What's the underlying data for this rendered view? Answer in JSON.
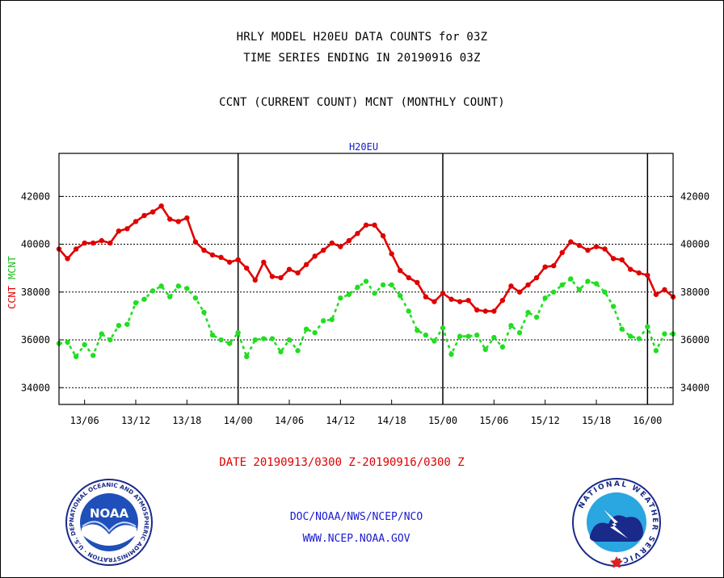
{
  "header": {
    "line1": "HRLY MODEL H20EU DATA COUNTS for 03Z",
    "line2": "TIME SERIES ENDING IN 20190916 03Z",
    "line3": "CCNT (CURRENT COUNT) MCNT (MONTHLY COUNT)"
  },
  "footer": {
    "date_range": "DATE 20190913/0300 Z-20190916/0300 Z",
    "org": "DOC/NOAA/NWS/NCEP/NCO",
    "url": "WWW.NCEP.NOAA.GOV"
  },
  "logos": {
    "left_text": "NOAA",
    "left_ring": "NATIONAL OCEANIC AND ATMOSPHERIC ADMINISTRATION · U.S. DEPARTMENT OF COMMERCE",
    "right_ring": "NATIONAL WEATHER SERVICE"
  },
  "chart_data": {
    "type": "line",
    "title": "H20EU",
    "ylabel": "CCNT  MCNT",
    "ylim": [
      33300,
      43800
    ],
    "yticks": [
      34000,
      36000,
      38000,
      40000,
      42000
    ],
    "ytick_labels": [
      "34000",
      "36000",
      "38000",
      "40000",
      "42000"
    ],
    "xlim": [
      0,
      72
    ],
    "xticks": [
      {
        "x": 3,
        "label": "13/06"
      },
      {
        "x": 9,
        "label": "13/12"
      },
      {
        "x": 15,
        "label": "13/18"
      },
      {
        "x": 21,
        "label": "14/00"
      },
      {
        "x": 27,
        "label": "14/06"
      },
      {
        "x": 33,
        "label": "14/12"
      },
      {
        "x": 39,
        "label": "14/18"
      },
      {
        "x": 45,
        "label": "15/00"
      },
      {
        "x": 51,
        "label": "15/06"
      },
      {
        "x": 57,
        "label": "15/12"
      },
      {
        "x": 63,
        "label": "15/18"
      },
      {
        "x": 69,
        "label": "16/00"
      }
    ],
    "day_lines": [
      21,
      45,
      69
    ],
    "grid": "horizontal dotted at y ticks",
    "colors": {
      "ccnt": "#e00000",
      "mcnt": "#22dd22",
      "axis_title": "#1a1ad0"
    },
    "series": [
      {
        "name": "CCNT",
        "values": [
          39800,
          39400,
          39800,
          40050,
          40050,
          40150,
          40050,
          40550,
          40650,
          40950,
          41200,
          41350,
          41600,
          41050,
          40950,
          41100,
          40100,
          39750,
          39550,
          39450,
          39250,
          39350,
          39000,
          38500,
          39250,
          38650,
          38600,
          38950,
          38800,
          39150,
          39500,
          39750,
          40050,
          39900,
          40150,
          40450,
          40800,
          40800,
          40350,
          39600,
          38900,
          38600,
          38400,
          37800,
          37600,
          37950,
          37700,
          37600,
          37650,
          37250,
          37200,
          37200,
          37650,
          38250,
          38000,
          38300,
          38600,
          39050,
          39100,
          39650,
          40100,
          39950,
          39750,
          39900,
          39800,
          39400,
          39350,
          38950,
          38800,
          38700,
          37900,
          38100,
          37800
        ]
      },
      {
        "name": "MCNT",
        "values": [
          35850,
          35900,
          35300,
          35800,
          35350,
          36250,
          36000,
          36600,
          36650,
          37550,
          37700,
          38050,
          38250,
          37800,
          38250,
          38150,
          37750,
          37150,
          36200,
          36000,
          35850,
          36300,
          35300,
          36000,
          36050,
          36050,
          35500,
          36000,
          35550,
          36450,
          36300,
          36800,
          36850,
          37750,
          37900,
          38200,
          38450,
          37950,
          38300,
          38300,
          37850,
          37200,
          36400,
          36200,
          35950,
          36500,
          35400,
          36150,
          36150,
          36200,
          35600,
          36100,
          35700,
          36600,
          36300,
          37150,
          36950,
          37750,
          38000,
          38300,
          38550,
          38100,
          38450,
          38350,
          38000,
          37400,
          36450,
          36150,
          36050,
          36550,
          35550,
          36250,
          36250
        ]
      }
    ]
  }
}
